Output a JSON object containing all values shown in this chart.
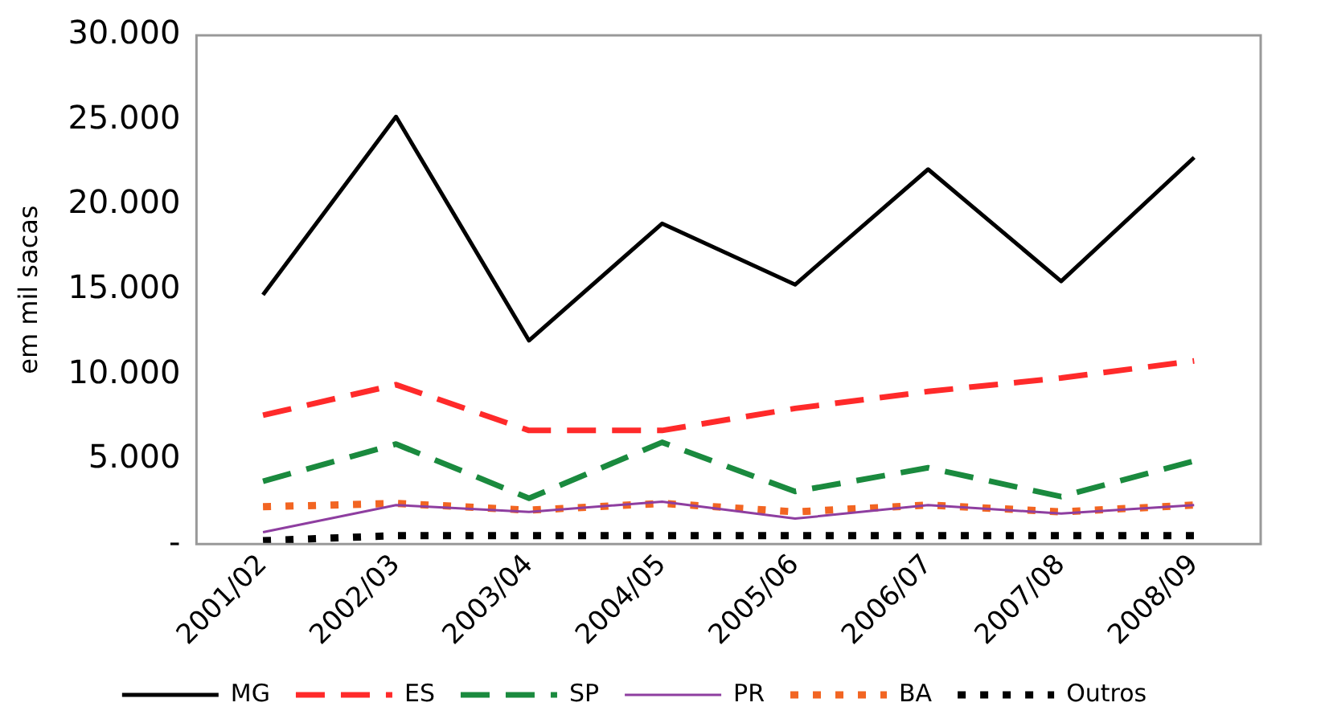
{
  "chart_data": {
    "type": "line",
    "ylabel": "em mil sacas",
    "categories": [
      "2001/02",
      "2002/03",
      "2003/04",
      "2004/05",
      "2005/06",
      "2006/07",
      "2007/08",
      "2008/09"
    ],
    "ylim": [
      0,
      30000
    ],
    "yticks": [
      {
        "value": 0,
        "label": "-"
      },
      {
        "value": 5000,
        "label": "5.000"
      },
      {
        "value": 10000,
        "label": "10.000"
      },
      {
        "value": 15000,
        "label": "15.000"
      },
      {
        "value": 20000,
        "label": "20.000"
      },
      {
        "value": 25000,
        "label": "25.000"
      },
      {
        "value": 30000,
        "label": "30.000"
      }
    ],
    "grid": false,
    "legend": "bottom",
    "marker": "none",
    "series": [
      {
        "name": "MG",
        "color": "#000000",
        "line_style": "solid",
        "values": [
          14700,
          25200,
          12000,
          18900,
          15300,
          22100,
          15500,
          22800
        ]
      },
      {
        "name": "ES",
        "color": "#ff2a2a",
        "line_style": "dashed",
        "values": [
          7600,
          9400,
          6700,
          6700,
          8000,
          9000,
          9800,
          10800
        ]
      },
      {
        "name": "SP",
        "color": "#1a8a3e",
        "line_style": "dashed",
        "values": [
          3700,
          5900,
          2700,
          6000,
          3100,
          4500,
          2800,
          4900
        ]
      },
      {
        "name": "PR",
        "color": "#8e3ea0",
        "line_style": "solid",
        "values": [
          700,
          2300,
          1900,
          2500,
          1500,
          2300,
          1800,
          2300
        ]
      },
      {
        "name": "BA",
        "color": "#f26522",
        "line_style": "dotted",
        "values": [
          2200,
          2400,
          2000,
          2400,
          1900,
          2300,
          1900,
          2300
        ]
      },
      {
        "name": "Outros",
        "color": "#000000",
        "line_style": "dotted",
        "values": [
          200,
          500,
          500,
          500,
          500,
          500,
          500,
          500
        ]
      }
    ]
  }
}
